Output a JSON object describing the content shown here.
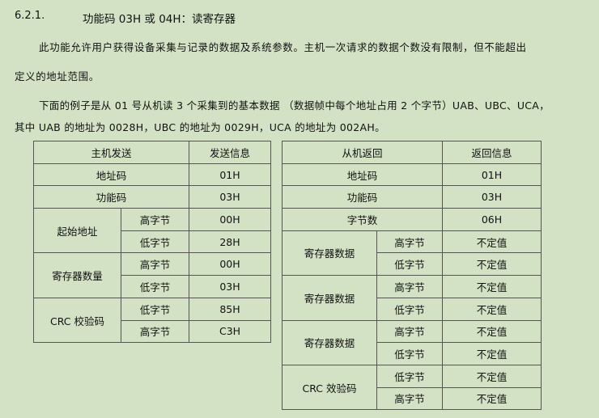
{
  "heading": {
    "number": "6.2.1.",
    "title": "功能码 03H 或 04H：读寄存器"
  },
  "paragraphs": [
    "此功能允许用户获得设备采集与记录的数据及系统参数。主机一次请求的数据个数没有限制，但不能超出",
    "定义的地址范围。",
    "下面的例子是从 01 号从机读 3 个采集到的基本数据 （数据帧中每个地址占用 2 个字节）UAB、UBC、UCA，",
    "其中 UAB 的地址为 0028H，UBC 的地址为 0029H，UCA 的地址为 002AH。"
  ],
  "send_table": {
    "headers": [
      "主机发送",
      "发送信息"
    ],
    "address": {
      "label": "地址码",
      "value": "01H"
    },
    "function": {
      "label": "功能码",
      "value": "03H"
    },
    "start": {
      "label": "起始地址",
      "hi": "高字节",
      "hi_value": "00H",
      "lo": "低字节",
      "lo_value": "28H"
    },
    "count": {
      "label": "寄存器数量",
      "hi": "高字节",
      "hi_value": "00H",
      "lo": "低字节",
      "lo_value": "03H"
    },
    "crc": {
      "label": "CRC 校验码",
      "lo": "低字节",
      "lo_value": "85H",
      "hi": "高字节",
      "hi_value": "C3H"
    }
  },
  "recv_table": {
    "headers": [
      "从机返回",
      "返回信息"
    ],
    "address": {
      "label": "地址码",
      "value": "01H"
    },
    "function": {
      "label": "功能码",
      "value": "03H"
    },
    "bytes": {
      "label": "字节数",
      "value": "06H"
    },
    "registers": [
      {
        "label": "寄存器数据",
        "hi": "高字节",
        "hi_value": "不定值",
        "lo": "低字节",
        "lo_value": "不定值"
      },
      {
        "label": "寄存器数据",
        "hi": "高字节",
        "hi_value": "不定值",
        "lo": "低字节",
        "lo_value": "不定值"
      },
      {
        "label": "寄存器数据",
        "hi": "高字节",
        "hi_value": "不定值",
        "lo": "低字节",
        "lo_value": "不定值"
      }
    ],
    "crc": {
      "label": "CRC 效验码",
      "lo": "低字节",
      "lo_value": "不定值",
      "hi": "高字节",
      "hi_value": "不定值"
    }
  }
}
